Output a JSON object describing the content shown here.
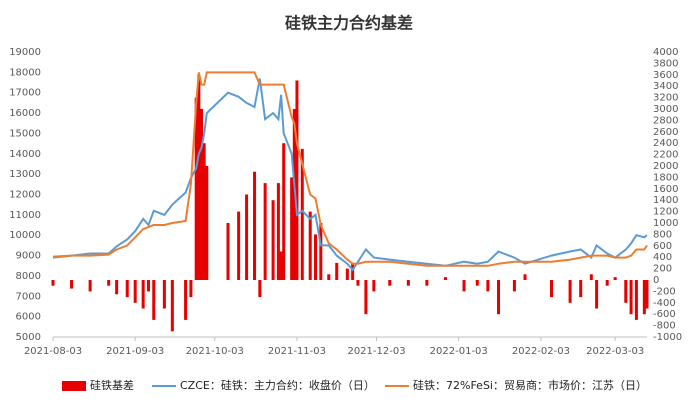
{
  "chart_data": {
    "type": "bar-line",
    "title": "硅铁主力合约基差",
    "x": [
      "2021-08-03",
      "2021-08-10",
      "2021-08-17",
      "2021-08-24",
      "2021-08-27",
      "2021-08-31",
      "2021-09-03",
      "2021-09-06",
      "2021-09-08",
      "2021-09-10",
      "2021-09-14",
      "2021-09-17",
      "2021-09-22",
      "2021-09-24",
      "2021-09-26",
      "2021-09-27",
      "2021-09-28",
      "2021-09-29",
      "2021-09-30",
      "2021-10-08",
      "2021-10-12",
      "2021-10-15",
      "2021-10-18",
      "2021-10-20",
      "2021-10-22",
      "2021-10-25",
      "2021-10-27",
      "2021-10-28",
      "2021-10-29",
      "2021-11-01",
      "2021-11-02",
      "2021-11-03",
      "2021-11-05",
      "2021-11-08",
      "2021-11-10",
      "2021-11-12",
      "2021-11-15",
      "2021-11-18",
      "2021-11-22",
      "2021-11-24",
      "2021-11-26",
      "2021-11-29",
      "2021-12-02",
      "2021-12-08",
      "2021-12-15",
      "2021-12-22",
      "2021-12-29",
      "2022-01-05",
      "2022-01-10",
      "2022-01-14",
      "2022-01-18",
      "2022-01-24",
      "2022-01-28",
      "2022-02-07",
      "2022-02-14",
      "2022-02-18",
      "2022-02-22",
      "2022-02-24",
      "2022-02-28",
      "2022-03-03",
      "2022-03-07",
      "2022-03-09",
      "2022-03-11",
      "2022-03-14",
      "2022-03-15"
    ],
    "xlim": [
      "2021-08-03",
      "2022-03-15"
    ],
    "xticks": [
      "2021-08-03",
      "2021-09-03",
      "2021-10-03",
      "2021-11-03",
      "2021-12-03",
      "2022-01-03",
      "2022-02-03",
      "2022-03-03"
    ],
    "ylim": [
      5000,
      19000
    ],
    "yticks": [
      5000,
      6000,
      7000,
      8000,
      9000,
      10000,
      11000,
      12000,
      13000,
      14000,
      15000,
      16000,
      17000,
      18000,
      19000
    ],
    "y2lim": [
      -1000,
      4000
    ],
    "y2ticks": [
      -1000,
      -800,
      -600,
      -400,
      -200,
      0,
      200,
      400,
      600,
      800,
      1000,
      1200,
      1400,
      1600,
      1800,
      2000,
      2200,
      2400,
      2600,
      2800,
      3000,
      3200,
      3400,
      3600,
      3800,
      4000
    ],
    "legend": "bottom",
    "series": [
      {
        "name": "硅铁基差",
        "type": "bar",
        "axis": "y2",
        "color": "#e60000",
        "values": [
          -100,
          -150,
          -200,
          -100,
          -250,
          -300,
          -400,
          -500,
          -200,
          -700,
          -500,
          -900,
          -700,
          -300,
          3200,
          3600,
          3000,
          2400,
          2000,
          1000,
          1200,
          1500,
          1900,
          -300,
          1700,
          1400,
          1700,
          500,
          2400,
          1800,
          3000,
          3500,
          2300,
          1200,
          800,
          1000,
          100,
          300,
          200,
          300,
          -100,
          -600,
          -200,
          -100,
          -100,
          -100,
          50,
          -200,
          -100,
          -200,
          -600,
          -200,
          100,
          -300,
          -400,
          -300,
          100,
          -500,
          -100,
          50,
          -400,
          -600,
          -700,
          -600,
          -500
        ]
      },
      {
        "name": "CZCE：硅铁：主力合约：收盘价（日）",
        "type": "line",
        "color": "#5b9bd5",
        "values": [
          8900,
          9000,
          9100,
          9100,
          9450,
          9800,
          10200,
          10800,
          10500,
          11200,
          11000,
          11500,
          12100,
          12800,
          13300,
          14000,
          14300,
          15000,
          16000,
          17000,
          16800,
          16500,
          16300,
          17700,
          15700,
          16000,
          15700,
          16900,
          15000,
          14000,
          12500,
          11000,
          11200,
          10800,
          11000,
          9500,
          9500,
          9000,
          8600,
          8300,
          8700,
          9300,
          8900,
          8800,
          8700,
          8600,
          8500,
          8700,
          8600,
          8700,
          9200,
          8900,
          8600,
          9000,
          9200,
          9300,
          8900,
          9500,
          9100,
          8900,
          9300,
          9600,
          10000,
          9900,
          10000
        ]
      },
      {
        "name": "硅铁：72%FeSi：贸易商：市场价：江苏（日）",
        "type": "line",
        "color": "#ed7d31",
        "values": [
          8950,
          9000,
          9000,
          9050,
          9300,
          9500,
          9900,
          10300,
          10400,
          10500,
          10500,
          10600,
          10700,
          12500,
          16500,
          18000,
          17400,
          17400,
          18000,
          18000,
          18000,
          18000,
          18000,
          17400,
          17400,
          17400,
          17400,
          17400,
          17400,
          15800,
          15500,
          14500,
          13500,
          12000,
          11800,
          10500,
          9600,
          9300,
          8800,
          8600,
          8600,
          8700,
          8700,
          8700,
          8600,
          8500,
          8500,
          8500,
          8500,
          8500,
          8600,
          8700,
          8700,
          8700,
          8800,
          8900,
          9000,
          9000,
          9000,
          8900,
          8900,
          9000,
          9300,
          9300,
          9500
        ]
      }
    ]
  }
}
